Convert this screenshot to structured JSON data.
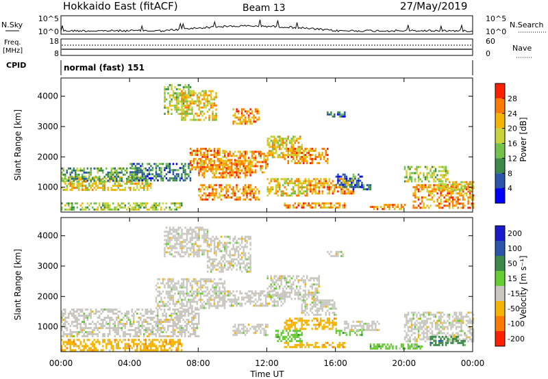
{
  "header": {
    "title": "Hokkaido East (fitACF)",
    "beam": "Beam 13",
    "date": "27/May/2019"
  },
  "top_panels": {
    "nsky_label": "N.Sky",
    "nsky_ticks": [
      "10^5",
      "10^0"
    ],
    "nsearch_label": "N.Search",
    "nsearch_ticks": [
      "10^5",
      "10^0"
    ],
    "freq_label": "Freq.",
    "freq_unit": "[MHz]",
    "freq_ticks": [
      "18",
      "8"
    ],
    "nave_label": "Nave",
    "nave_ticks": [
      "60",
      "0"
    ],
    "cpid_label": "CPID",
    "cpid_value": "normal (fast) 151"
  },
  "chart_data": [
    {
      "type": "heatmap",
      "quantity": "Power",
      "ylabel": "Slant Range [km]",
      "ylim": [
        180,
        4600
      ],
      "yticks": [
        1000,
        2000,
        3000,
        4000
      ],
      "xlim_hours": [
        0,
        24
      ],
      "colorbar_label": "Power [dB]",
      "colorbar_ticks": [
        4,
        8,
        12,
        16,
        20,
        24,
        28
      ],
      "colorbar_range": [
        0,
        32
      ],
      "colors": [
        "#0000ff",
        "#2a55aa",
        "#3c8a4a",
        "#73c24b",
        "#c9d43c",
        "#f5b400",
        "#ff7a00",
        "#ff2000"
      ],
      "regions": [
        {
          "t": [
            0.0,
            5.2
          ],
          "r": [
            900,
            1350
          ],
          "v": 22
        },
        {
          "t": [
            0.0,
            5.0
          ],
          "r": [
            1200,
            1650
          ],
          "v": 14
        },
        {
          "t": [
            0.0,
            7.0
          ],
          "r": [
            250,
            500
          ],
          "v": 18
        },
        {
          "t": [
            4.0,
            7.5
          ],
          "r": [
            1200,
            1800
          ],
          "v": 12
        },
        {
          "t": [
            6.0,
            7.5
          ],
          "r": [
            3400,
            4400
          ],
          "v": 20
        },
        {
          "t": [
            7.0,
            9.0
          ],
          "r": [
            3200,
            4200
          ],
          "v": 24
        },
        {
          "t": [
            7.5,
            9.5
          ],
          "r": [
            1600,
            2300
          ],
          "v": 28
        },
        {
          "t": [
            8.0,
            11.0
          ],
          "r": [
            1300,
            1900
          ],
          "v": 28
        },
        {
          "t": [
            10.0,
            11.5
          ],
          "r": [
            3100,
            3600
          ],
          "v": 28
        },
        {
          "t": [
            9.5,
            12.0
          ],
          "r": [
            1500,
            2200
          ],
          "v": 26
        },
        {
          "t": [
            8.0,
            11.5
          ],
          "r": [
            600,
            1100
          ],
          "v": 28
        },
        {
          "t": [
            12.0,
            14.0
          ],
          "r": [
            2000,
            2700
          ],
          "v": 22
        },
        {
          "t": [
            12.0,
            14.5
          ],
          "r": [
            700,
            1300
          ],
          "v": 24
        },
        {
          "t": [
            13.0,
            15.5
          ],
          "r": [
            1800,
            2300
          ],
          "v": 28
        },
        {
          "t": [
            15.5,
            16.5
          ],
          "r": [
            3300,
            3500
          ],
          "v": 12
        },
        {
          "t": [
            14.5,
            17.0
          ],
          "r": [
            800,
            1300
          ],
          "v": 28
        },
        {
          "t": [
            16.0,
            17.5
          ],
          "r": [
            1000,
            1450
          ],
          "v": 12
        },
        {
          "t": [
            13.0,
            16.5
          ],
          "r": [
            300,
            500
          ],
          "v": 28
        },
        {
          "t": [
            17.0,
            18.0
          ],
          "r": [
            900,
            1100
          ],
          "v": 12
        },
        {
          "t": [
            18.0,
            20.0
          ],
          "r": [
            250,
            450
          ],
          "v": 28
        },
        {
          "t": [
            20.0,
            22.5
          ],
          "r": [
            1200,
            1700
          ],
          "v": 20
        },
        {
          "t": [
            20.5,
            24.0
          ],
          "r": [
            300,
            1100
          ],
          "v": 28
        },
        {
          "t": [
            22.0,
            24.0
          ],
          "r": [
            900,
            1200
          ],
          "v": 24
        }
      ]
    },
    {
      "type": "heatmap",
      "quantity": "Velocity",
      "ylabel": "Slant Range [km]",
      "ylim": [
        180,
        4600
      ],
      "yticks": [
        1000,
        2000,
        3000,
        4000
      ],
      "xlim_hours": [
        0,
        24
      ],
      "xticks": [
        "00:00",
        "04:00",
        "08:00",
        "12:00",
        "16:00",
        "20:00",
        "00:00"
      ],
      "xlabel": "Time UT",
      "colorbar_label": "Velocity [m s⁻¹]",
      "colorbar_ticks": [
        "200",
        "100",
        "50",
        "15",
        "-15",
        "-50",
        "-100",
        "-200"
      ],
      "colors": [
        "#1a1acc",
        "#2a55aa",
        "#3c8a4a",
        "#66cc33",
        "#c8c8c0",
        "#f5b400",
        "#ff7a00",
        "#ff2000"
      ],
      "regions": [
        {
          "t": [
            0.0,
            8.0
          ],
          "r": [
            700,
            1600
          ],
          "c": 4
        },
        {
          "t": [
            5.5,
            9.5
          ],
          "r": [
            1600,
            2600
          ],
          "c": 4
        },
        {
          "t": [
            9.0,
            13.0
          ],
          "r": [
            1700,
            2200
          ],
          "c": 4
        },
        {
          "t": [
            6.0,
            8.5
          ],
          "r": [
            3300,
            4300
          ],
          "c": 4
        },
        {
          "t": [
            8.5,
            11.0
          ],
          "r": [
            2800,
            4000
          ],
          "c": 4
        },
        {
          "t": [
            12.0,
            15.0
          ],
          "r": [
            1900,
            2700
          ],
          "c": 4
        },
        {
          "t": [
            0.0,
            7.0
          ],
          "r": [
            250,
            600
          ],
          "c": 5
        },
        {
          "t": [
            10.0,
            12.0
          ],
          "r": [
            700,
            1100
          ],
          "c": 4
        },
        {
          "t": [
            12.5,
            14.0
          ],
          "r": [
            500,
            900
          ],
          "c": 3
        },
        {
          "t": [
            13.0,
            16.0
          ],
          "r": [
            900,
            1300
          ],
          "c": 5
        },
        {
          "t": [
            16.0,
            17.5
          ],
          "r": [
            700,
            900
          ],
          "c": 3
        },
        {
          "t": [
            14.0,
            16.0
          ],
          "r": [
            1400,
            1900
          ],
          "c": 4
        },
        {
          "t": [
            16.5,
            18.5
          ],
          "r": [
            900,
            1200
          ],
          "c": 4
        },
        {
          "t": [
            15.5,
            16.5
          ],
          "r": [
            3300,
            3500
          ],
          "c": 4
        },
        {
          "t": [
            13.0,
            16.5
          ],
          "r": [
            300,
            500
          ],
          "c": 5
        },
        {
          "t": [
            18.0,
            21.0
          ],
          "r": [
            250,
            450
          ],
          "c": 3
        },
        {
          "t": [
            20.0,
            24.0
          ],
          "r": [
            500,
            1500
          ],
          "c": 4
        },
        {
          "t": [
            21.5,
            23.5
          ],
          "r": [
            400,
            700
          ],
          "c": 2
        }
      ]
    }
  ]
}
